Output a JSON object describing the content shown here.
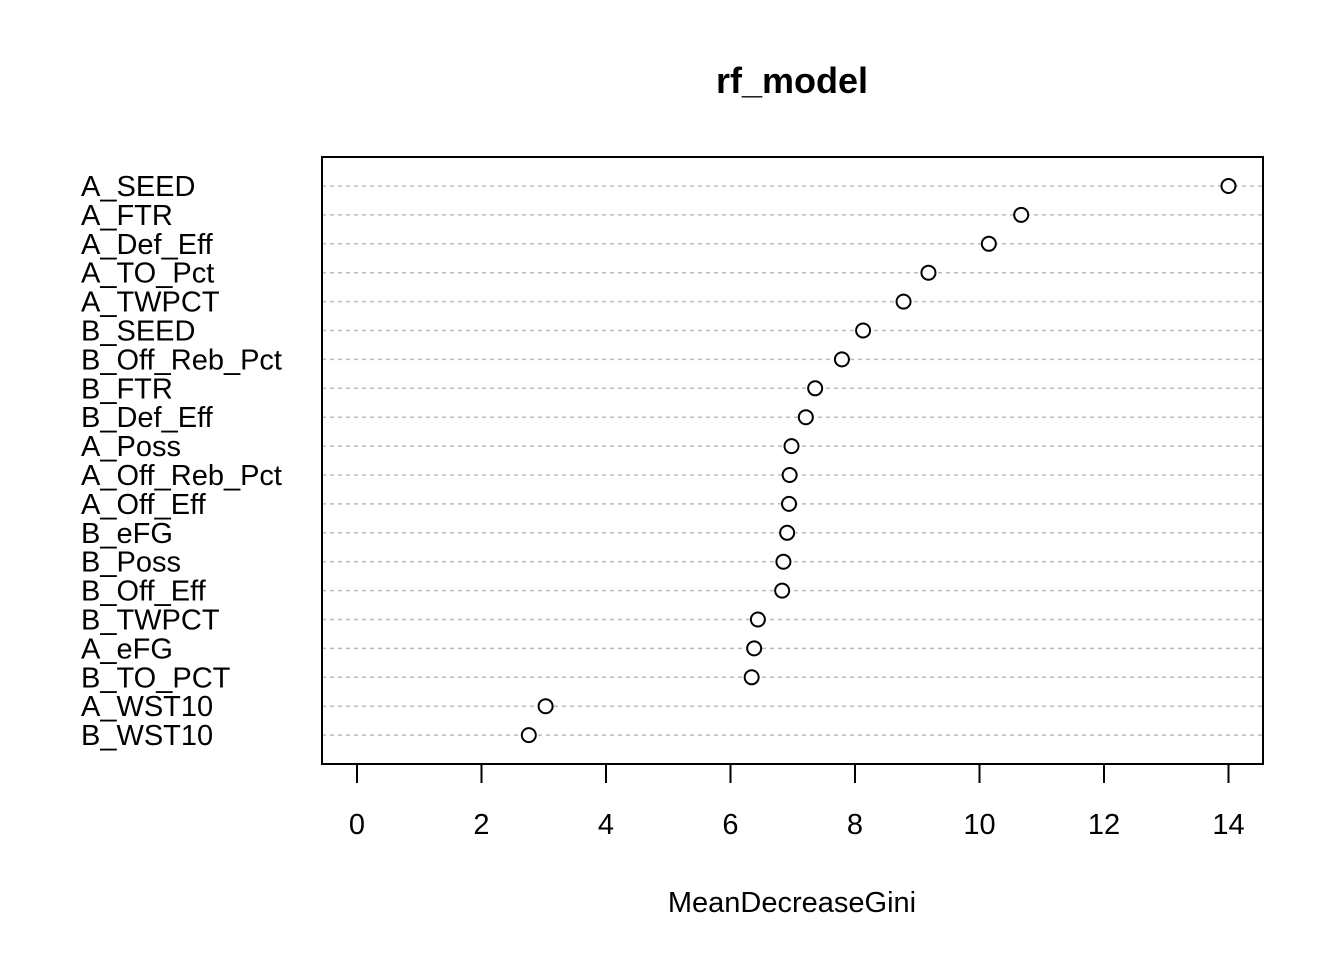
{
  "chart_data": {
    "type": "scatter",
    "title": "rf_model",
    "xlabel": "MeanDecreaseGini",
    "ylabel": "",
    "xlim": [
      -0.6,
      14.6
    ],
    "xticks": [
      0,
      2,
      4,
      6,
      8,
      10,
      12,
      14
    ],
    "grid": "dotted horizontal lines per category",
    "legend": "none",
    "categories": [
      "A_SEED",
      "A_FTR",
      "A_Def_Eff",
      "A_TO_Pct",
      "A_TWPCT",
      "B_SEED",
      "B_Off_Reb_Pct",
      "B_FTR",
      "B_Def_Eff",
      "A_Poss",
      "A_Off_Reb_Pct",
      "A_Off_Eff",
      "B_eFG",
      "B_Poss",
      "B_Off_Eff",
      "B_TWPCT",
      "A_eFG",
      "B_TO_PCT",
      "A_WST10",
      "B_WST10"
    ],
    "values": [
      14.0,
      10.67,
      10.15,
      9.18,
      8.78,
      8.13,
      7.79,
      7.36,
      7.21,
      6.98,
      6.95,
      6.94,
      6.91,
      6.85,
      6.83,
      6.44,
      6.38,
      6.34,
      3.03,
      2.76
    ]
  },
  "colors": {
    "point_stroke": "#000000",
    "point_fill": "#ffffff",
    "gridline": "#bdbdbd"
  }
}
